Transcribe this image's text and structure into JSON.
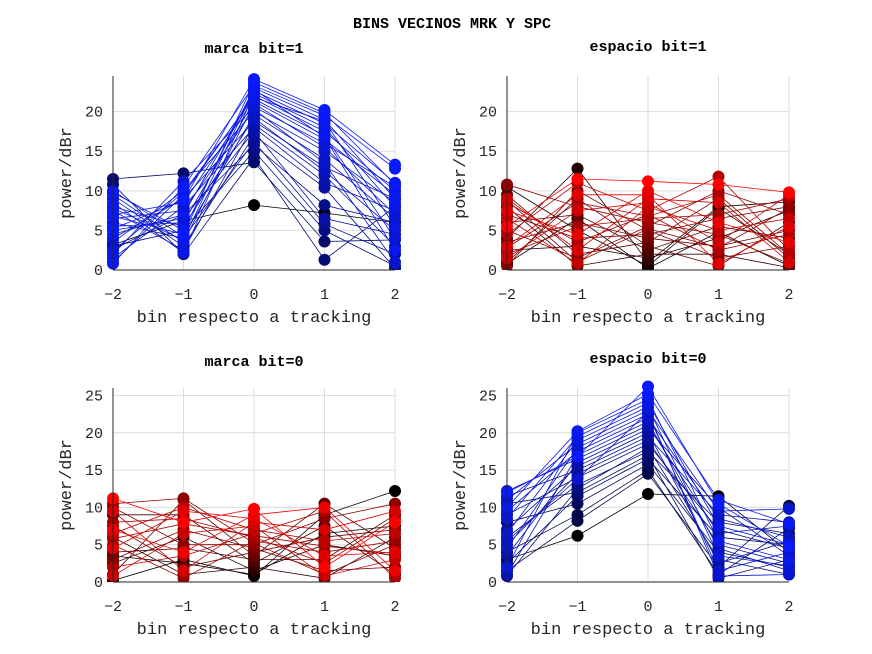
{
  "chart_data": {
    "title": "BINS VECINOS MRK Y SPC",
    "subplots": [
      {
        "id": "marca-bit1",
        "type": "line",
        "title": "marca bit=1",
        "xlabel": "bin respecto a tracking",
        "ylabel": "power/dBr",
        "x": [
          -2,
          -1,
          0,
          1,
          2
        ],
        "xticks": [
          "−2",
          "−1",
          "0",
          "1",
          "2"
        ],
        "yticks": [
          0,
          5,
          10,
          15,
          20
        ],
        "ylim": [
          0,
          24.5
        ],
        "grid": true,
        "colormap": {
          "low": "#000000",
          "high": "#0a1aff"
        },
        "series": [
          [
            11.5,
            12.2,
            13.6,
            3.6,
            3.8
          ],
          [
            10.8,
            2.0,
            14.2,
            1.3,
            8.0
          ],
          [
            3.0,
            5.0,
            15.0,
            5.0,
            0.5
          ],
          [
            2.6,
            7.0,
            15.8,
            8.2,
            6.0
          ],
          [
            6.0,
            4.0,
            16.2,
            5.8,
            2.0
          ],
          [
            9.0,
            3.0,
            17.0,
            10.4,
            0.2
          ],
          [
            5.0,
            6.5,
            17.5,
            6.5,
            4.5
          ],
          [
            1.5,
            8.0,
            18.0,
            11.0,
            7.5
          ],
          [
            7.5,
            2.5,
            18.4,
            12.0,
            3.0
          ],
          [
            4.0,
            9.0,
            18.8,
            13.0,
            9.0
          ],
          [
            8.0,
            5.5,
            19.2,
            12.5,
            5.0
          ],
          [
            10.0,
            4.2,
            19.6,
            14.0,
            6.5
          ],
          [
            3.5,
            10.0,
            20.0,
            15.0,
            8.5
          ],
          [
            6.5,
            7.5,
            20.3,
            13.5,
            1.0
          ],
          [
            2.0,
            11.2,
            20.6,
            16.0,
            10.5
          ],
          [
            9.5,
            3.5,
            21.0,
            15.5,
            7.0
          ],
          [
            5.5,
            6.0,
            21.3,
            16.5,
            9.5
          ],
          [
            7.0,
            8.5,
            21.6,
            17.0,
            4.0
          ],
          [
            1.0,
            9.5,
            22.0,
            17.5,
            10.0
          ],
          [
            8.5,
            2.2,
            22.3,
            18.0,
            8.0
          ],
          [
            4.5,
            7.0,
            22.6,
            18.5,
            11.0
          ],
          [
            9.8,
            5.0,
            23.0,
            19.0,
            9.0
          ],
          [
            0.8,
            10.5,
            23.3,
            19.5,
            12.8
          ],
          [
            6.8,
            4.5,
            23.7,
            19.8,
            10.8
          ],
          [
            5.2,
            8.8,
            24.1,
            20.2,
            13.3
          ],
          [
            3.2,
            6.2,
            8.2,
            7.2,
            6.0
          ],
          [
            7.8,
            3.8,
            22.8,
            16.8,
            2.5
          ],
          [
            2.4,
            9.8,
            21.8,
            18.8,
            5.5
          ]
        ]
      },
      {
        "id": "espacio-bit1",
        "type": "line",
        "title": "espacio bit=1",
        "xlabel": "bin respecto a tracking",
        "ylabel": "power/dBr",
        "x": [
          -2,
          -1,
          0,
          1,
          2
        ],
        "xticks": [
          "−2",
          "−1",
          "0",
          "1",
          "2"
        ],
        "yticks": [
          0,
          5,
          10,
          15,
          20
        ],
        "ylim": [
          0,
          24.5
        ],
        "grid": true,
        "colormap": {
          "low": "#000000",
          "high": "#ff0000"
        },
        "series": [
          [
            4.0,
            12.8,
            1.0,
            8.0,
            8.6
          ],
          [
            10.5,
            5.0,
            0.5,
            7.8,
            2.0
          ],
          [
            2.5,
            3.0,
            1.5,
            4.0,
            7.5
          ],
          [
            8.0,
            0.5,
            2.0,
            2.0,
            0.3
          ],
          [
            6.0,
            7.0,
            2.5,
            5.5,
            4.0
          ],
          [
            1.0,
            9.0,
            3.0,
            0.5,
            6.0
          ],
          [
            9.5,
            2.0,
            3.5,
            9.0,
            1.5
          ],
          [
            3.5,
            6.0,
            4.0,
            3.0,
            5.0
          ],
          [
            7.0,
            4.0,
            4.5,
            6.5,
            8.0
          ],
          [
            0.5,
            10.0,
            5.0,
            1.5,
            3.0
          ],
          [
            5.0,
            1.5,
            5.5,
            10.0,
            7.0
          ],
          [
            10.8,
            8.0,
            6.0,
            4.5,
            0.8
          ],
          [
            2.0,
            5.5,
            6.5,
            7.0,
            9.0
          ],
          [
            8.5,
            3.5,
            7.0,
            2.5,
            4.5
          ],
          [
            4.5,
            11.0,
            7.5,
            11.8,
            2.5
          ],
          [
            6.5,
            0.8,
            8.0,
            5.0,
            6.5
          ],
          [
            1.5,
            7.5,
            8.5,
            3.5,
            9.5
          ],
          [
            9.0,
            2.5,
            9.0,
            8.5,
            1.0
          ],
          [
            3.0,
            9.5,
            9.5,
            0.8,
            5.5
          ],
          [
            7.5,
            4.5,
            10.0,
            6.0,
            3.5
          ],
          [
            5.5,
            11.5,
            11.2,
            10.8,
            9.8
          ],
          [
            0.8,
            6.5,
            0.2,
            4.8,
            0.5
          ],
          [
            8.8,
            1.0,
            5.2,
            2.8,
            7.8
          ],
          [
            2.8,
            8.5,
            6.8,
            9.5,
            2.0
          ]
        ]
      },
      {
        "id": "marca-bit0",
        "type": "line",
        "title": "marca bit=0",
        "xlabel": "bin respecto a tracking",
        "ylabel": "power/dBr",
        "x": [
          -2,
          -1,
          0,
          1,
          2
        ],
        "xticks": [
          "−2",
          "−1",
          "0",
          "1",
          "2"
        ],
        "yticks": [
          0,
          5,
          10,
          15,
          20,
          25
        ],
        "ylim": [
          0,
          26
        ],
        "grid": true,
        "colormap": {
          "low": "#000000",
          "high": "#ff0000"
        },
        "series": [
          [
            11.2,
            8.0,
            9.8,
            2.0,
            8.0
          ],
          [
            0.2,
            3.0,
            0.8,
            9.0,
            12.2
          ],
          [
            2.5,
            6.0,
            1.5,
            5.0,
            3.5
          ],
          [
            6.0,
            1.0,
            2.0,
            0.5,
            6.0
          ],
          [
            9.0,
            9.0,
            2.5,
            7.5,
            1.0
          ],
          [
            4.0,
            4.5,
            3.0,
            3.0,
            9.0
          ],
          [
            1.0,
            11.0,
            3.5,
            10.5,
            4.5
          ],
          [
            7.5,
            2.0,
            4.0,
            6.0,
            7.0
          ],
          [
            3.0,
            7.0,
            4.5,
            1.5,
            2.0
          ],
          [
            10.0,
            5.0,
            5.0,
            8.5,
            10.5
          ],
          [
            5.0,
            0.5,
            5.5,
            4.0,
            5.5
          ],
          [
            8.0,
            8.5,
            6.0,
            2.5,
            8.5
          ],
          [
            2.0,
            3.5,
            6.5,
            9.5,
            0.5
          ],
          [
            6.5,
            10.0,
            7.0,
            5.5,
            6.5
          ],
          [
            0.8,
            6.5,
            7.5,
            0.8,
            3.0
          ],
          [
            9.5,
            1.5,
            8.0,
            7.0,
            9.5
          ],
          [
            4.5,
            9.5,
            8.5,
            3.5,
            4.0
          ],
          [
            7.0,
            4.0,
            9.0,
            10.0,
            1.5
          ],
          [
            3.5,
            2.5,
            1.0,
            6.5,
            7.5
          ],
          [
            5.8,
            7.8,
            6.2,
            4.8,
            3.8
          ],
          [
            10.5,
            11.2,
            5.2,
            1.0,
            5.0
          ]
        ]
      },
      {
        "id": "espacio-bit0",
        "type": "line",
        "title": "espacio bit=0",
        "xlabel": "bin respecto a tracking",
        "ylabel": "power/dBr",
        "x": [
          -2,
          -1,
          0,
          1,
          2
        ],
        "xticks": [
          "−2",
          "−1",
          "0",
          "1",
          "2"
        ],
        "yticks": [
          0,
          5,
          10,
          15,
          20,
          25
        ],
        "ylim": [
          0,
          26
        ],
        "grid": true,
        "colormap": {
          "low": "#000000",
          "high": "#0a1aff"
        },
        "series": [
          [
            3.0,
            6.2,
            11.8,
            11.5,
            4.0
          ],
          [
            1.5,
            8.2,
            14.5,
            2.0,
            10.2
          ],
          [
            4.0,
            9.0,
            15.0,
            1.0,
            7.2
          ],
          [
            8.0,
            10.5,
            15.8,
            4.0,
            2.0
          ],
          [
            2.5,
            11.5,
            16.5,
            6.0,
            5.0
          ],
          [
            10.5,
            12.0,
            17.0,
            0.5,
            3.0
          ],
          [
            6.0,
            13.0,
            17.5,
            8.0,
            6.5
          ],
          [
            0.8,
            12.5,
            18.0,
            3.0,
            1.0
          ],
          [
            9.0,
            14.0,
            18.5,
            7.0,
            4.5
          ],
          [
            5.0,
            14.5,
            19.0,
            5.0,
            2.5
          ],
          [
            11.5,
            15.0,
            19.5,
            9.0,
            8.0
          ],
          [
            7.0,
            15.5,
            20.0,
            2.5,
            5.5
          ],
          [
            3.5,
            16.0,
            20.5,
            10.0,
            3.5
          ],
          [
            12.2,
            16.5,
            21.0,
            6.5,
            7.5
          ],
          [
            1.0,
            17.0,
            21.5,
            4.5,
            1.5
          ],
          [
            9.5,
            17.5,
            22.0,
            8.5,
            6.0
          ],
          [
            4.5,
            18.0,
            22.5,
            1.5,
            4.0
          ],
          [
            11.0,
            18.5,
            23.0,
            9.5,
            9.8
          ],
          [
            6.5,
            19.0,
            23.5,
            3.5,
            2.2
          ],
          [
            8.5,
            19.5,
            24.0,
            7.5,
            5.0
          ],
          [
            2.0,
            20.0,
            24.5,
            5.5,
            3.0
          ],
          [
            10.0,
            20.2,
            25.2,
            11.0,
            7.8
          ],
          [
            12.0,
            16.8,
            26.2,
            10.5,
            4.8
          ],
          [
            5.5,
            13.8,
            22.8,
            0.8,
            1.0
          ]
        ]
      }
    ]
  }
}
